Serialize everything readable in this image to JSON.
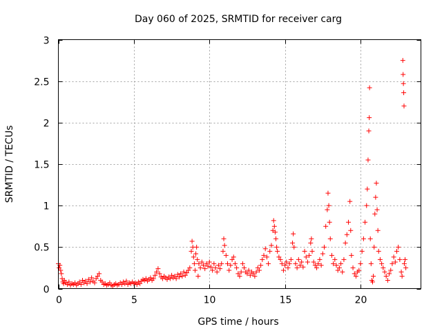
{
  "chart_data": {
    "type": "scatter",
    "title": "Day 060 of 2025, SRMTID for receiver carg",
    "xlabel": "GPS time / hours",
    "ylabel": "SRMTID / TECUs",
    "xlim": [
      0,
      24
    ],
    "ylim": [
      0,
      3
    ],
    "xticks": [
      0,
      5,
      10,
      15,
      20
    ],
    "yticks": [
      0,
      0.5,
      1,
      1.5,
      2,
      2.5,
      3
    ],
    "xtick_labels": [
      "0",
      "5",
      "10",
      "15",
      "20"
    ],
    "ytick_labels": [
      "0",
      "0.5",
      "1",
      "1.5",
      "2",
      "2.5",
      "3"
    ],
    "grid": true,
    "marker": "+",
    "series": [
      {
        "name": "SRMTID",
        "color": "#ff0000",
        "points": [
          [
            0.0,
            0.3
          ],
          [
            0.05,
            0.25
          ],
          [
            0.1,
            0.28
          ],
          [
            0.15,
            0.22
          ],
          [
            0.2,
            0.18
          ],
          [
            0.25,
            0.12
          ],
          [
            0.3,
            0.08
          ],
          [
            0.35,
            0.06
          ],
          [
            0.4,
            0.1
          ],
          [
            0.5,
            0.07
          ],
          [
            0.6,
            0.05
          ],
          [
            0.7,
            0.08
          ],
          [
            0.8,
            0.04
          ],
          [
            0.9,
            0.06
          ],
          [
            1.0,
            0.05
          ],
          [
            1.1,
            0.07
          ],
          [
            1.2,
            0.04
          ],
          [
            1.3,
            0.06
          ],
          [
            1.4,
            0.08
          ],
          [
            1.5,
            0.05
          ],
          [
            1.6,
            0.1
          ],
          [
            1.7,
            0.07
          ],
          [
            1.8,
            0.09
          ],
          [
            1.9,
            0.06
          ],
          [
            2.0,
            0.11
          ],
          [
            2.1,
            0.08
          ],
          [
            2.2,
            0.13
          ],
          [
            2.3,
            0.09
          ],
          [
            2.4,
            0.07
          ],
          [
            2.5,
            0.12
          ],
          [
            2.6,
            0.15
          ],
          [
            2.7,
            0.18
          ],
          [
            2.8,
            0.1
          ],
          [
            2.9,
            0.08
          ],
          [
            3.0,
            0.05
          ],
          [
            3.1,
            0.06
          ],
          [
            3.2,
            0.04
          ],
          [
            3.3,
            0.05
          ],
          [
            3.4,
            0.07
          ],
          [
            3.5,
            0.04
          ],
          [
            3.6,
            0.03
          ],
          [
            3.7,
            0.05
          ],
          [
            3.8,
            0.06
          ],
          [
            3.9,
            0.04
          ],
          [
            4.0,
            0.05
          ],
          [
            4.1,
            0.07
          ],
          [
            4.2,
            0.05
          ],
          [
            4.3,
            0.08
          ],
          [
            4.4,
            0.06
          ],
          [
            4.5,
            0.09
          ],
          [
            4.6,
            0.05
          ],
          [
            4.7,
            0.07
          ],
          [
            4.8,
            0.06
          ],
          [
            4.9,
            0.08
          ],
          [
            5.0,
            0.06
          ],
          [
            5.1,
            0.07
          ],
          [
            5.2,
            0.05
          ],
          [
            5.3,
            0.08
          ],
          [
            5.4,
            0.06
          ],
          [
            5.5,
            0.09
          ],
          [
            5.6,
            0.11
          ],
          [
            5.7,
            0.1
          ],
          [
            5.8,
            0.12
          ],
          [
            5.9,
            0.09
          ],
          [
            6.0,
            0.11
          ],
          [
            6.1,
            0.13
          ],
          [
            6.2,
            0.1
          ],
          [
            6.3,
            0.12
          ],
          [
            6.4,
            0.16
          ],
          [
            6.5,
            0.2
          ],
          [
            6.6,
            0.24
          ],
          [
            6.7,
            0.18
          ],
          [
            6.8,
            0.14
          ],
          [
            6.9,
            0.12
          ],
          [
            7.0,
            0.15
          ],
          [
            7.1,
            0.13
          ],
          [
            7.2,
            0.11
          ],
          [
            7.3,
            0.14
          ],
          [
            7.4,
            0.12
          ],
          [
            7.5,
            0.16
          ],
          [
            7.6,
            0.13
          ],
          [
            7.7,
            0.15
          ],
          [
            7.8,
            0.12
          ],
          [
            7.9,
            0.17
          ],
          [
            8.0,
            0.14
          ],
          [
            8.1,
            0.18
          ],
          [
            8.2,
            0.15
          ],
          [
            8.3,
            0.2
          ],
          [
            8.4,
            0.16
          ],
          [
            8.5,
            0.19
          ],
          [
            8.6,
            0.22
          ],
          [
            8.7,
            0.25
          ],
          [
            8.8,
            0.45
          ],
          [
            8.85,
            0.57
          ],
          [
            8.9,
            0.5
          ],
          [
            8.95,
            0.38
          ],
          [
            9.0,
            0.3
          ],
          [
            9.05,
            0.22
          ],
          [
            9.1,
            0.42
          ],
          [
            9.15,
            0.5
          ],
          [
            9.2,
            0.35
          ],
          [
            9.25,
            0.15
          ],
          [
            9.3,
            0.3
          ],
          [
            9.4,
            0.25
          ],
          [
            9.5,
            0.32
          ],
          [
            9.6,
            0.28
          ],
          [
            9.7,
            0.24
          ],
          [
            9.8,
            0.3
          ],
          [
            9.9,
            0.27
          ],
          [
            10.0,
            0.32
          ],
          [
            10.1,
            0.26
          ],
          [
            10.2,
            0.22
          ],
          [
            10.3,
            0.3
          ],
          [
            10.4,
            0.25
          ],
          [
            10.5,
            0.2
          ],
          [
            10.6,
            0.28
          ],
          [
            10.7,
            0.24
          ],
          [
            10.8,
            0.3
          ],
          [
            10.9,
            0.45
          ],
          [
            10.95,
            0.6
          ],
          [
            11.0,
            0.52
          ],
          [
            11.1,
            0.4
          ],
          [
            11.2,
            0.3
          ],
          [
            11.3,
            0.22
          ],
          [
            11.4,
            0.28
          ],
          [
            11.5,
            0.35
          ],
          [
            11.6,
            0.38
          ],
          [
            11.7,
            0.3
          ],
          [
            11.8,
            0.25
          ],
          [
            11.9,
            0.18
          ],
          [
            12.0,
            0.15
          ],
          [
            12.1,
            0.2
          ],
          [
            12.2,
            0.3
          ],
          [
            12.3,
            0.25
          ],
          [
            12.4,
            0.2
          ],
          [
            12.5,
            0.18
          ],
          [
            12.6,
            0.22
          ],
          [
            12.7,
            0.16
          ],
          [
            12.8,
            0.2
          ],
          [
            12.9,
            0.18
          ],
          [
            13.0,
            0.15
          ],
          [
            13.1,
            0.2
          ],
          [
            13.2,
            0.25
          ],
          [
            13.3,
            0.22
          ],
          [
            13.4,
            0.28
          ],
          [
            13.5,
            0.35
          ],
          [
            13.6,
            0.4
          ],
          [
            13.7,
            0.48
          ],
          [
            13.8,
            0.38
          ],
          [
            13.9,
            0.3
          ],
          [
            14.0,
            0.45
          ],
          [
            14.1,
            0.52
          ],
          [
            14.2,
            0.7
          ],
          [
            14.25,
            0.82
          ],
          [
            14.3,
            0.75
          ],
          [
            14.35,
            0.68
          ],
          [
            14.4,
            0.6
          ],
          [
            14.45,
            0.5
          ],
          [
            14.5,
            0.45
          ],
          [
            14.6,
            0.38
          ],
          [
            14.7,
            0.35
          ],
          [
            14.8,
            0.3
          ],
          [
            14.9,
            0.22
          ],
          [
            15.0,
            0.28
          ],
          [
            15.1,
            0.32
          ],
          [
            15.2,
            0.25
          ],
          [
            15.3,
            0.3
          ],
          [
            15.4,
            0.35
          ],
          [
            15.5,
            0.55
          ],
          [
            15.55,
            0.66
          ],
          [
            15.6,
            0.5
          ],
          [
            15.7,
            0.3
          ],
          [
            15.8,
            0.25
          ],
          [
            15.9,
            0.35
          ],
          [
            16.0,
            0.28
          ],
          [
            16.1,
            0.32
          ],
          [
            16.2,
            0.26
          ],
          [
            16.3,
            0.45
          ],
          [
            16.4,
            0.38
          ],
          [
            16.5,
            0.32
          ],
          [
            16.6,
            0.4
          ],
          [
            16.7,
            0.55
          ],
          [
            16.75,
            0.6
          ],
          [
            16.8,
            0.45
          ],
          [
            16.9,
            0.32
          ],
          [
            17.0,
            0.28
          ],
          [
            17.1,
            0.25
          ],
          [
            17.2,
            0.3
          ],
          [
            17.3,
            0.35
          ],
          [
            17.4,
            0.28
          ],
          [
            17.5,
            0.42
          ],
          [
            17.6,
            0.5
          ],
          [
            17.7,
            0.75
          ],
          [
            17.8,
            0.95
          ],
          [
            17.85,
            1.15
          ],
          [
            17.9,
            1.0
          ],
          [
            17.95,
            0.8
          ],
          [
            18.0,
            0.6
          ],
          [
            18.1,
            0.4
          ],
          [
            18.2,
            0.3
          ],
          [
            18.3,
            0.35
          ],
          [
            18.4,
            0.28
          ],
          [
            18.5,
            0.22
          ],
          [
            18.6,
            0.25
          ],
          [
            18.7,
            0.3
          ],
          [
            18.8,
            0.2
          ],
          [
            18.9,
            0.35
          ],
          [
            19.0,
            0.55
          ],
          [
            19.1,
            0.65
          ],
          [
            19.2,
            0.8
          ],
          [
            19.3,
            1.05
          ],
          [
            19.35,
            0.7
          ],
          [
            19.4,
            0.4
          ],
          [
            19.5,
            0.25
          ],
          [
            19.6,
            0.18
          ],
          [
            19.7,
            0.15
          ],
          [
            19.8,
            0.2
          ],
          [
            19.9,
            0.22
          ],
          [
            20.0,
            0.3
          ],
          [
            20.1,
            0.45
          ],
          [
            20.2,
            0.6
          ],
          [
            20.3,
            0.8
          ],
          [
            20.4,
            1.0
          ],
          [
            20.45,
            1.2
          ],
          [
            20.5,
            1.55
          ],
          [
            20.55,
            1.9
          ],
          [
            20.58,
            2.06
          ],
          [
            20.6,
            2.42
          ],
          [
            20.65,
            0.6
          ],
          [
            20.7,
            0.3
          ],
          [
            20.75,
            0.1
          ],
          [
            20.8,
            0.08
          ],
          [
            20.85,
            0.15
          ],
          [
            20.9,
            0.5
          ],
          [
            20.95,
            0.9
          ],
          [
            21.0,
            1.1
          ],
          [
            21.05,
            1.27
          ],
          [
            21.1,
            0.95
          ],
          [
            21.15,
            0.7
          ],
          [
            21.2,
            0.45
          ],
          [
            21.3,
            0.35
          ],
          [
            21.4,
            0.3
          ],
          [
            21.5,
            0.25
          ],
          [
            21.6,
            0.2
          ],
          [
            21.7,
            0.15
          ],
          [
            21.8,
            0.1
          ],
          [
            21.9,
            0.18
          ],
          [
            22.0,
            0.22
          ],
          [
            22.1,
            0.3
          ],
          [
            22.2,
            0.38
          ],
          [
            22.3,
            0.32
          ],
          [
            22.4,
            0.45
          ],
          [
            22.5,
            0.5
          ],
          [
            22.6,
            0.35
          ],
          [
            22.7,
            0.2
          ],
          [
            22.75,
            0.15
          ],
          [
            22.8,
            2.75
          ],
          [
            22.82,
            2.58
          ],
          [
            22.84,
            2.47
          ],
          [
            22.86,
            2.36
          ],
          [
            22.88,
            2.2
          ],
          [
            22.9,
            0.3
          ],
          [
            22.95,
            0.35
          ],
          [
            23.0,
            0.25
          ]
        ]
      }
    ]
  }
}
